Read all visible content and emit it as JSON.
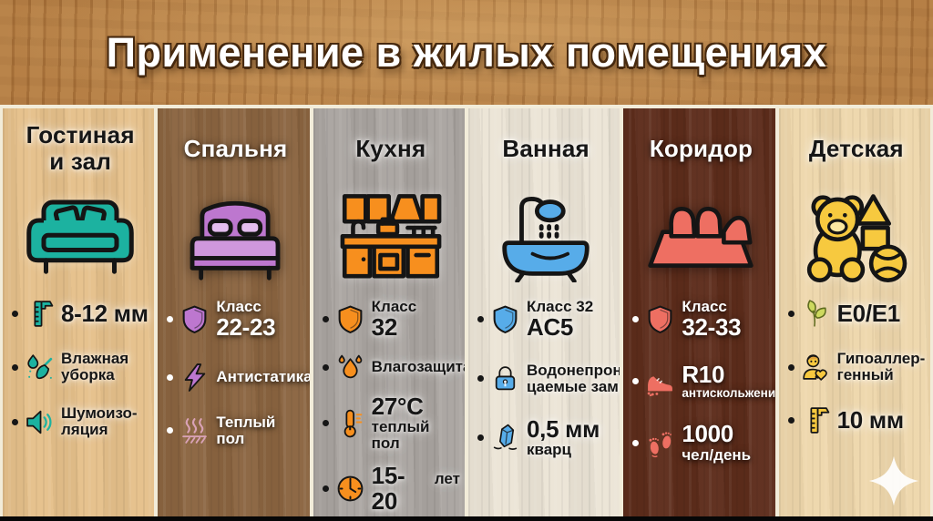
{
  "title": "Применение в жилых помещениях",
  "colors": {
    "header_wood": "#b1793f",
    "divider": "#f2ecd9",
    "bottom_bar": "#070707",
    "brand_mark": "#ffffff"
  },
  "columns": [
    {
      "id": "living-room",
      "header_lines": [
        "Гостиная",
        "и зал"
      ],
      "theme": "light",
      "wood": "#e5c08a",
      "accent": "#1cb2a0",
      "room_icon": "sofa-icon",
      "features": [
        {
          "icon": "caliper-icon",
          "lines": [
            {
              "text": "8-12 мм",
              "size": "big"
            }
          ]
        },
        {
          "icon": "wet-cleaning-icon",
          "lines": [
            {
              "text": "Влажная",
              "size": "normal"
            },
            {
              "text": "уборка",
              "size": "normal"
            }
          ]
        },
        {
          "icon": "speaker-icon",
          "lines": [
            {
              "text": "Шумоизо-",
              "size": "normal"
            },
            {
              "text": "ляция",
              "size": "normal"
            }
          ]
        }
      ]
    },
    {
      "id": "bedroom",
      "header_lines": [
        "Спальня"
      ],
      "theme": "dark",
      "wood": "#8a6440",
      "accent": "#bd77cf",
      "room_icon": "bed-icon",
      "features": [
        {
          "icon": "shield-icon",
          "lines": [
            {
              "text": "Класс",
              "size": "normal"
            },
            {
              "text": "22-23",
              "size": "big"
            }
          ]
        },
        {
          "icon": "lightning-icon",
          "lines": [
            {
              "text": "Антистатика",
              "size": "normal"
            }
          ]
        },
        {
          "icon": "heated-floor-icon",
          "icon_color": "#d9a2b6",
          "lines": [
            {
              "text": "Теплый пол",
              "size": "normal"
            }
          ]
        }
      ]
    },
    {
      "id": "kitchen",
      "header_lines": [
        "Кухня"
      ],
      "theme": "light",
      "wood": "#a9a4a0",
      "accent": "#f78f1e",
      "room_icon": "kitchen-icon",
      "features": [
        {
          "icon": "shield-icon",
          "lines": [
            {
              "text": "Класс",
              "size": "normal"
            },
            {
              "text": "32",
              "size": "big"
            }
          ]
        },
        {
          "icon": "drops-icon",
          "lines": [
            {
              "text": "Влагозащита",
              "size": "normal"
            }
          ]
        },
        {
          "icon": "thermometer-icon",
          "lines": [
            {
              "text": "27°C",
              "size": "big"
            },
            {
              "text": "теплый пол",
              "size": "normal"
            }
          ]
        },
        {
          "icon": "clock-icon",
          "inline": true,
          "lines": [
            {
              "text": "15-20",
              "size": "big"
            },
            {
              "text": "лет",
              "size": "normal"
            }
          ]
        }
      ]
    },
    {
      "id": "bathroom",
      "header_lines": [
        "Ванная"
      ],
      "theme": "light",
      "wood": "#ebe4d6",
      "accent": "#57ace9",
      "room_icon": "bathtub-icon",
      "features": [
        {
          "icon": "shield-icon",
          "lines": [
            {
              "text": "Класс 32",
              "size": "normal"
            },
            {
              "text": "AC5",
              "size": "big"
            }
          ]
        },
        {
          "icon": "padlock-icon",
          "lines": [
            {
              "text": "Водонепрони-",
              "size": "normal"
            },
            {
              "text": "цаемые замки",
              "size": "normal"
            }
          ]
        },
        {
          "icon": "crystal-icon",
          "lines": [
            {
              "text": "0,5 мм",
              "size": "big"
            },
            {
              "text": "кварц",
              "size": "normal"
            }
          ]
        }
      ]
    },
    {
      "id": "corridor",
      "header_lines": [
        "Коридор"
      ],
      "theme": "dark",
      "wood": "#5d2c1b",
      "accent": "#ee6f62",
      "room_icon": "shoes-mat-icon",
      "features": [
        {
          "icon": "shield-icon",
          "lines": [
            {
              "text": "Класс",
              "size": "normal"
            },
            {
              "text": "32-33",
              "size": "big"
            }
          ]
        },
        {
          "icon": "sneaker-icon",
          "lines": [
            {
              "text": "R10",
              "size": "big"
            },
            {
              "text": "антискольжение",
              "size": "small"
            }
          ]
        },
        {
          "icon": "footprints-icon",
          "lines": [
            {
              "text": "1000",
              "size": "big"
            },
            {
              "text": "чел/день",
              "size": "normal"
            }
          ]
        }
      ]
    },
    {
      "id": "kids-room",
      "header_lines": [
        "Детская"
      ],
      "theme": "light",
      "wood": "#eed7ab",
      "accent": "#f7c93f",
      "room_icon": "teddy-bear-icon",
      "features": [
        {
          "icon": "leaves-icon",
          "icon_color": "#cdd95e",
          "lines": [
            {
              "text": "E0/E1",
              "size": "big"
            }
          ]
        },
        {
          "icon": "child-icon",
          "lines": [
            {
              "text": "Гипоаллер-",
              "size": "normal"
            },
            {
              "text": "генный",
              "size": "normal"
            }
          ]
        },
        {
          "icon": "caliper-icon",
          "lines": [
            {
              "text": "10 мм",
              "size": "big"
            }
          ]
        }
      ],
      "brand_icon": "sparkle-icon"
    }
  ]
}
